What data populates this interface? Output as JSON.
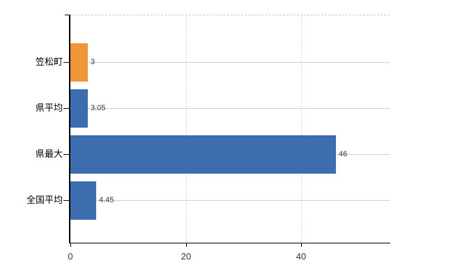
{
  "chart_data": {
    "type": "bar",
    "orientation": "horizontal",
    "categories": [
      "笠松町",
      "県平均",
      "県最大",
      "全国平均"
    ],
    "values": [
      3,
      3.05,
      46,
      4.45
    ],
    "value_labels": [
      "3",
      "3.05",
      "46",
      "4.45"
    ],
    "bar_colors": [
      "#EF9637",
      "#3D6DAE",
      "#3D6DAE",
      "#3D6DAE"
    ],
    "x_axis": {
      "tick_values": [
        0,
        20,
        40
      ],
      "tick_labels": [
        "0",
        "20",
        "40"
      ],
      "min": 0,
      "max": 55.3
    },
    "grid": true,
    "legend_position": "none"
  },
  "colors": {
    "background": "#ffffff",
    "bar_default": "#3D6DAE",
    "bar_highlight": "#EF9637",
    "axis": "#000000",
    "gridline_h": "#ccd5cc",
    "gridline_v": "#d8d8d8",
    "plot_border_dashed": "#c9c9c9",
    "value_label": "#333333",
    "category_label": "#000000",
    "tick_label": "#333333"
  }
}
